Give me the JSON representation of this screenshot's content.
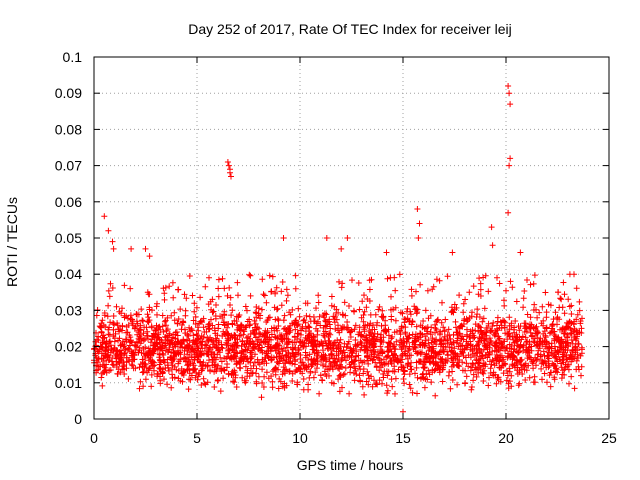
{
  "chart_data": {
    "type": "scatter",
    "title": "Day 252 of 2017, Rate Of TEC Index for receiver leij",
    "xlabel": "GPS time / hours",
    "ylabel": "ROTI / TECUs",
    "xlim": [
      0,
      25
    ],
    "ylim": [
      0,
      0.1
    ],
    "xticks": [
      0,
      5,
      10,
      15,
      20,
      25
    ],
    "yticks": [
      0,
      0.01,
      0.02,
      0.03,
      0.04,
      0.05,
      0.06,
      0.07,
      0.08,
      0.09,
      0.1
    ],
    "xtick_labels": [
      "0",
      "5",
      "10",
      "15",
      "20",
      "25"
    ],
    "ytick_labels": [
      "0",
      "0.01",
      "0.02",
      "0.03",
      "0.04",
      "0.05",
      "0.06",
      "0.07",
      "0.08",
      "0.09",
      "0.1"
    ],
    "grid": true,
    "marker": "+",
    "series": [
      {
        "name": "ROTI",
        "color": "#ff0000",
        "x_range": [
          0,
          23.7
        ],
        "dense_band": [
          0.005,
          0.03
        ],
        "points": [
          [
            0.5,
            0.056
          ],
          [
            0.7,
            0.052
          ],
          [
            0.9,
            0.049
          ],
          [
            0.95,
            0.047
          ],
          [
            1.8,
            0.047
          ],
          [
            2.5,
            0.047
          ],
          [
            2.7,
            0.045
          ],
          [
            6.5,
            0.071
          ],
          [
            6.55,
            0.07
          ],
          [
            6.6,
            0.069
          ],
          [
            6.6,
            0.068
          ],
          [
            6.65,
            0.067
          ],
          [
            9.2,
            0.05
          ],
          [
            11.3,
            0.05
          ],
          [
            12.0,
            0.047
          ],
          [
            12.3,
            0.05
          ],
          [
            14.2,
            0.046
          ],
          [
            15.7,
            0.058
          ],
          [
            15.8,
            0.054
          ],
          [
            15.75,
            0.05
          ],
          [
            17.4,
            0.046
          ],
          [
            19.3,
            0.053
          ],
          [
            19.35,
            0.048
          ],
          [
            20.1,
            0.092
          ],
          [
            20.15,
            0.09
          ],
          [
            20.2,
            0.087
          ],
          [
            20.2,
            0.072
          ],
          [
            20.15,
            0.07
          ],
          [
            20.1,
            0.057
          ],
          [
            20.7,
            0.046
          ],
          [
            23.1,
            0.04
          ],
          [
            23.3,
            0.04
          ],
          [
            15.0,
            0.002
          ]
        ]
      }
    ]
  }
}
